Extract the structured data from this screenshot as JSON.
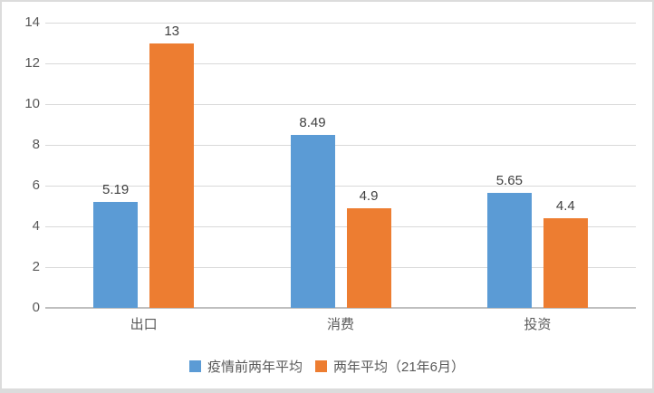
{
  "chart_data": {
    "type": "bar",
    "title": "",
    "categories": [
      "出口",
      "消费",
      "投资"
    ],
    "series": [
      {
        "name": "疫情前两年平均",
        "color": "#5b9bd5",
        "values": [
          5.19,
          8.49,
          5.65
        ]
      },
      {
        "name": "两年平均（21年6月）",
        "color": "#ed7d31",
        "values": [
          13,
          4.9,
          4.4
        ]
      }
    ],
    "data_labels": [
      [
        "5.19",
        "8.49",
        "5.65"
      ],
      [
        "13",
        "4.9",
        "4.4"
      ]
    ],
    "ylim": [
      0,
      14
    ],
    "yticks": [
      "0",
      "2",
      "4",
      "6",
      "8",
      "10",
      "12",
      "14"
    ],
    "xlabel": "",
    "ylabel": "",
    "grid": "horizontal",
    "legend_position": "bottom",
    "colors": {
      "grid_color": "#d9d9d9",
      "axis_color": "#bfbfbf",
      "tick_text": "#595959",
      "value_label_text": "#404040",
      "card_border": "#dcdcdc",
      "background": "#ffffff"
    }
  }
}
